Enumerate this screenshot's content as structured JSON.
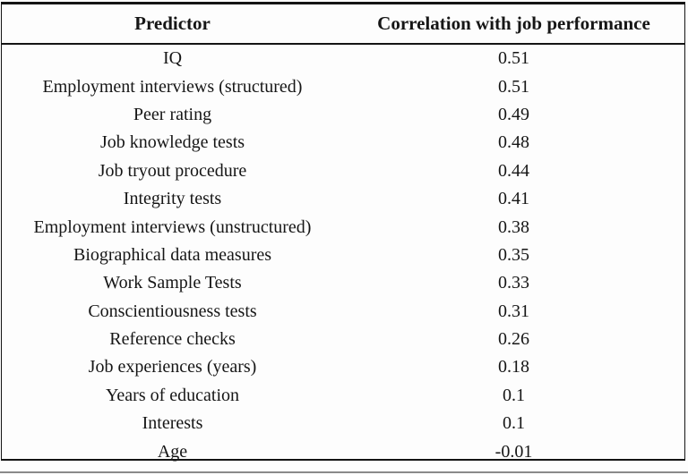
{
  "table": {
    "headers": {
      "predictor": "Predictor",
      "correlation": "Correlation with job performance"
    },
    "rows": [
      {
        "predictor": "IQ",
        "correlation": "0.51"
      },
      {
        "predictor": "Employment interviews (structured)",
        "correlation": "0.51"
      },
      {
        "predictor": "Peer rating",
        "correlation": "0.49"
      },
      {
        "predictor": "Job knowledge tests",
        "correlation": "0.48"
      },
      {
        "predictor": "Job tryout procedure",
        "correlation": "0.44"
      },
      {
        "predictor": "Integrity tests",
        "correlation": "0.41"
      },
      {
        "predictor": "Employment interviews (unstructured)",
        "correlation": "0.38"
      },
      {
        "predictor": "Biographical data measures",
        "correlation": "0.35"
      },
      {
        "predictor": "Work Sample Tests",
        "correlation": "0.33"
      },
      {
        "predictor": "Conscientiousness tests",
        "correlation": "0.31"
      },
      {
        "predictor": "Reference checks",
        "correlation": "0.26"
      },
      {
        "predictor": "Job experiences (years)",
        "correlation": "0.18"
      },
      {
        "predictor": "Years of education",
        "correlation": "0.1"
      },
      {
        "predictor": "Interests",
        "correlation": "0.1"
      },
      {
        "predictor": "Age",
        "correlation": "-0.01"
      }
    ],
    "colors": {
      "border": "#141414",
      "text": "#161616",
      "background": "#fdfdfd",
      "frame_line": "#8a8a8a"
    }
  }
}
